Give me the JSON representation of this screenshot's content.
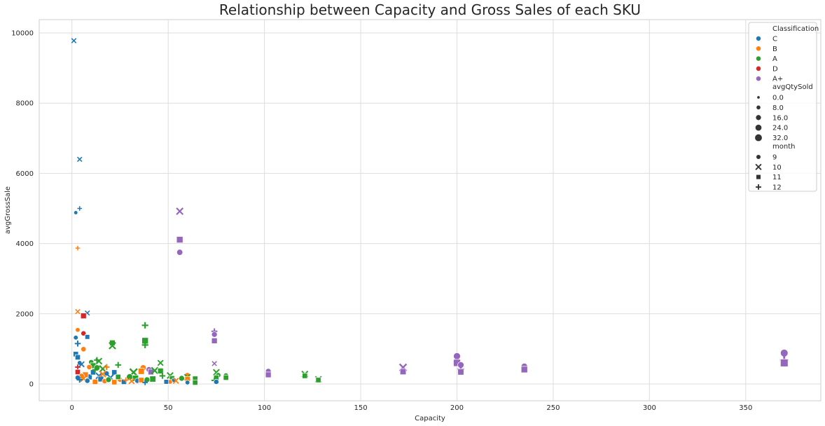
{
  "chart_data": {
    "type": "scatter",
    "title": "Relationship between Capacity and Gross Sales of each SKU",
    "xlabel": "Capacity",
    "ylabel": "avgGrossSale",
    "xlim": [
      -17,
      389
    ],
    "ylim": [
      -480,
      10380
    ],
    "xticks": [
      0,
      50,
      100,
      150,
      200,
      250,
      300,
      350
    ],
    "yticks": [
      0,
      2000,
      4000,
      6000,
      8000,
      10000
    ],
    "grid": true,
    "legend_position": "top-right",
    "legend": {
      "hue_title": "Classification",
      "hue": [
        {
          "label": "C",
          "color": "#1f77b4"
        },
        {
          "label": "B",
          "color": "#ff7f0e"
        },
        {
          "label": "A",
          "color": "#2ca02c"
        },
        {
          "label": "D",
          "color": "#d62728"
        },
        {
          "label": "A+",
          "color": "#9467bd"
        }
      ],
      "size_title": "avgQtySold",
      "sizes": [
        "0.0",
        "8.0",
        "16.0",
        "24.0",
        "32.0"
      ],
      "style_title": "month",
      "styles": [
        {
          "label": "9",
          "marker": "circle"
        },
        {
          "label": "10",
          "marker": "x"
        },
        {
          "label": "11",
          "marker": "square"
        },
        {
          "label": "12",
          "marker": "plus"
        }
      ]
    },
    "points": [
      {
        "x": 1,
        "y": 9780,
        "cls": "C",
        "month": 10,
        "qty": 1
      },
      {
        "x": 4,
        "y": 6400,
        "cls": "C",
        "month": 10,
        "qty": 1
      },
      {
        "x": 2,
        "y": 4880,
        "cls": "C",
        "month": 9,
        "qty": 1
      },
      {
        "x": 4,
        "y": 5000,
        "cls": "C",
        "month": 12,
        "qty": 1
      },
      {
        "x": 3,
        "y": 3870,
        "cls": "B",
        "month": 12,
        "qty": 1
      },
      {
        "x": 56,
        "y": 4920,
        "cls": "A+",
        "month": 10,
        "qty": 4
      },
      {
        "x": 56,
        "y": 4110,
        "cls": "A+",
        "month": 11,
        "qty": 6
      },
      {
        "x": 56,
        "y": 3750,
        "cls": "A+",
        "month": 9,
        "qty": 5
      },
      {
        "x": 3,
        "y": 2060,
        "cls": "B",
        "month": 10,
        "qty": 1
      },
      {
        "x": 8,
        "y": 2020,
        "cls": "C",
        "month": 10,
        "qty": 1
      },
      {
        "x": 6,
        "y": 1940,
        "cls": "D",
        "month": 11,
        "qty": 4
      },
      {
        "x": 6,
        "y": 1440,
        "cls": "D",
        "month": 9,
        "qty": 3
      },
      {
        "x": 3,
        "y": 1540,
        "cls": "B",
        "month": 9,
        "qty": 2
      },
      {
        "x": 8,
        "y": 1340,
        "cls": "C",
        "month": 11,
        "qty": 2
      },
      {
        "x": 2,
        "y": 1320,
        "cls": "C",
        "month": 9,
        "qty": 2
      },
      {
        "x": 3,
        "y": 1150,
        "cls": "C",
        "month": 12,
        "qty": 3
      },
      {
        "x": 6,
        "y": 990,
        "cls": "B",
        "month": 9,
        "qty": 3
      },
      {
        "x": 2,
        "y": 850,
        "cls": "C",
        "month": 11,
        "qty": 3
      },
      {
        "x": 3,
        "y": 760,
        "cls": "C",
        "month": 11,
        "qty": 3
      },
      {
        "x": 4,
        "y": 600,
        "cls": "C",
        "month": 9,
        "qty": 2
      },
      {
        "x": 5,
        "y": 560,
        "cls": "C",
        "month": 10,
        "qty": 2
      },
      {
        "x": 3,
        "y": 480,
        "cls": "D",
        "month": 12,
        "qty": 2
      },
      {
        "x": 3,
        "y": 340,
        "cls": "D",
        "month": 11,
        "qty": 3
      },
      {
        "x": 38,
        "y": 1670,
        "cls": "A",
        "month": 12,
        "qty": 4
      },
      {
        "x": 38,
        "y": 1230,
        "cls": "A",
        "month": 11,
        "qty": 6
      },
      {
        "x": 38,
        "y": 1110,
        "cls": "A",
        "month": 12,
        "qty": 4
      },
      {
        "x": 21,
        "y": 1170,
        "cls": "A",
        "month": 11,
        "qty": 4
      },
      {
        "x": 21,
        "y": 1090,
        "cls": "A",
        "month": 10,
        "qty": 4
      },
      {
        "x": 74,
        "y": 1500,
        "cls": "A+",
        "month": 12,
        "qty": 3
      },
      {
        "x": 74,
        "y": 1410,
        "cls": "A+",
        "month": 9,
        "qty": 4
      },
      {
        "x": 74,
        "y": 1230,
        "cls": "A+",
        "month": 11,
        "qty": 4
      },
      {
        "x": 74,
        "y": 580,
        "cls": "A+",
        "month": 10,
        "qty": 1
      },
      {
        "x": 10,
        "y": 620,
        "cls": "A",
        "month": 9,
        "qty": 3
      },
      {
        "x": 13,
        "y": 680,
        "cls": "A",
        "month": 12,
        "qty": 3
      },
      {
        "x": 14,
        "y": 650,
        "cls": "A",
        "month": 10,
        "qty": 3
      },
      {
        "x": 11,
        "y": 520,
        "cls": "A",
        "month": 11,
        "qty": 4
      },
      {
        "x": 13,
        "y": 460,
        "cls": "A",
        "month": 9,
        "qty": 5
      },
      {
        "x": 16,
        "y": 430,
        "cls": "A",
        "month": 10,
        "qty": 4
      },
      {
        "x": 24,
        "y": 540,
        "cls": "A",
        "month": 12,
        "qty": 3
      },
      {
        "x": 46,
        "y": 600,
        "cls": "A",
        "month": 10,
        "qty": 2
      },
      {
        "x": 9,
        "y": 480,
        "cls": "B",
        "month": 9,
        "qty": 3
      },
      {
        "x": 18,
        "y": 480,
        "cls": "B",
        "month": 12,
        "qty": 3
      },
      {
        "x": 37,
        "y": 460,
        "cls": "B",
        "month": 9,
        "qty": 5
      },
      {
        "x": 36,
        "y": 360,
        "cls": "B",
        "month": 11,
        "qty": 5
      },
      {
        "x": 40,
        "y": 410,
        "cls": "A+",
        "month": 9,
        "qty": 4
      },
      {
        "x": 41,
        "y": 340,
        "cls": "A+",
        "month": 11,
        "qty": 4
      },
      {
        "x": 43,
        "y": 380,
        "cls": "A",
        "month": 10,
        "qty": 4
      },
      {
        "x": 46,
        "y": 370,
        "cls": "A",
        "month": 11,
        "qty": 4
      },
      {
        "x": 32,
        "y": 330,
        "cls": "A",
        "month": 10,
        "qty": 6
      },
      {
        "x": 30,
        "y": 200,
        "cls": "A",
        "month": 9,
        "qty": 6
      },
      {
        "x": 33,
        "y": 160,
        "cls": "A",
        "month": 11,
        "qty": 5
      },
      {
        "x": 42,
        "y": 140,
        "cls": "A",
        "month": 11,
        "qty": 5
      },
      {
        "x": 39,
        "y": 120,
        "cls": "A",
        "month": 9,
        "qty": 4
      },
      {
        "x": 47,
        "y": 230,
        "cls": "A",
        "month": 12,
        "qty": 3
      },
      {
        "x": 22,
        "y": 330,
        "cls": "C",
        "month": 11,
        "qty": 3
      },
      {
        "x": 18,
        "y": 300,
        "cls": "C",
        "month": 9,
        "qty": 3
      },
      {
        "x": 14,
        "y": 230,
        "cls": "C",
        "month": 10,
        "qty": 3
      },
      {
        "x": 9,
        "y": 200,
        "cls": "C",
        "month": 11,
        "qty": 4
      },
      {
        "x": 7,
        "y": 260,
        "cls": "B",
        "month": 11,
        "qty": 4
      },
      {
        "x": 5,
        "y": 220,
        "cls": "B",
        "month": 9,
        "qty": 4
      },
      {
        "x": 3,
        "y": 180,
        "cls": "C",
        "month": 9,
        "qty": 3
      },
      {
        "x": 6,
        "y": 150,
        "cls": "B",
        "month": 10,
        "qty": 3
      },
      {
        "x": 4,
        "y": 120,
        "cls": "C",
        "month": 12,
        "qty": 3
      },
      {
        "x": 8,
        "y": 90,
        "cls": "C",
        "month": 9,
        "qty": 3
      },
      {
        "x": 12,
        "y": 60,
        "cls": "B",
        "month": 11,
        "qty": 3
      },
      {
        "x": 15,
        "y": 140,
        "cls": "C",
        "month": 11,
        "qty": 4
      },
      {
        "x": 17,
        "y": 80,
        "cls": "B",
        "month": 9,
        "qty": 3
      },
      {
        "x": 20,
        "y": 180,
        "cls": "C",
        "month": 10,
        "qty": 3
      },
      {
        "x": 22,
        "y": 50,
        "cls": "B",
        "month": 11,
        "qty": 3
      },
      {
        "x": 25,
        "y": 120,
        "cls": "B",
        "month": 9,
        "qty": 3
      },
      {
        "x": 27,
        "y": 60,
        "cls": "C",
        "month": 11,
        "qty": 3
      },
      {
        "x": 28,
        "y": 110,
        "cls": "B",
        "month": 12,
        "qty": 2
      },
      {
        "x": 31,
        "y": 80,
        "cls": "B",
        "month": 10,
        "qty": 2
      },
      {
        "x": 34,
        "y": 90,
        "cls": "C",
        "month": 9,
        "qty": 3
      },
      {
        "x": 36,
        "y": 110,
        "cls": "B",
        "month": 11,
        "qty": 3
      },
      {
        "x": 38,
        "y": 40,
        "cls": "C",
        "month": 12,
        "qty": 2
      },
      {
        "x": 24,
        "y": 200,
        "cls": "A",
        "month": 11,
        "qty": 3
      },
      {
        "x": 19,
        "y": 120,
        "cls": "A",
        "month": 9,
        "qty": 4
      },
      {
        "x": 16,
        "y": 280,
        "cls": "B",
        "month": 10,
        "qty": 3
      },
      {
        "x": 11,
        "y": 330,
        "cls": "C",
        "month": 11,
        "qty": 3
      },
      {
        "x": 12,
        "y": 400,
        "cls": "A",
        "month": 12,
        "qty": 3
      },
      {
        "x": 51,
        "y": 240,
        "cls": "A",
        "month": 10,
        "qty": 3
      },
      {
        "x": 52,
        "y": 160,
        "cls": "A",
        "month": 11,
        "qty": 3
      },
      {
        "x": 51,
        "y": 60,
        "cls": "B",
        "month": 9,
        "qty": 2
      },
      {
        "x": 53,
        "y": 110,
        "cls": "C",
        "month": 9,
        "qty": 2
      },
      {
        "x": 54,
        "y": 90,
        "cls": "B",
        "month": 10,
        "qty": 2
      },
      {
        "x": 49,
        "y": 60,
        "cls": "C",
        "month": 11,
        "qty": 2
      },
      {
        "x": 57,
        "y": 160,
        "cls": "A",
        "month": 9,
        "qty": 4
      },
      {
        "x": 60,
        "y": 250,
        "cls": "B",
        "month": 9,
        "qty": 3
      },
      {
        "x": 60,
        "y": 190,
        "cls": "A",
        "month": 10,
        "qty": 3
      },
      {
        "x": 60,
        "y": 140,
        "cls": "B",
        "month": 11,
        "qty": 3
      },
      {
        "x": 60,
        "y": 40,
        "cls": "C",
        "month": 9,
        "qty": 2
      },
      {
        "x": 64,
        "y": 150,
        "cls": "A",
        "month": 11,
        "qty": 3
      },
      {
        "x": 64,
        "y": 40,
        "cls": "A",
        "month": 11,
        "qty": 3
      },
      {
        "x": 75,
        "y": 330,
        "cls": "A",
        "month": 10,
        "qty": 3
      },
      {
        "x": 76,
        "y": 250,
        "cls": "A",
        "month": 9,
        "qty": 3
      },
      {
        "x": 75,
        "y": 180,
        "cls": "A",
        "month": 11,
        "qty": 3
      },
      {
        "x": 74,
        "y": 100,
        "cls": "A",
        "month": 12,
        "qty": 3
      },
      {
        "x": 75,
        "y": 60,
        "cls": "C",
        "month": 9,
        "qty": 3
      },
      {
        "x": 80,
        "y": 240,
        "cls": "A",
        "month": 9,
        "qty": 3
      },
      {
        "x": 80,
        "y": 180,
        "cls": "A",
        "month": 11,
        "qty": 3
      },
      {
        "x": 102,
        "y": 360,
        "cls": "A+",
        "month": 9,
        "qty": 4
      },
      {
        "x": 102,
        "y": 260,
        "cls": "A+",
        "month": 11,
        "qty": 4
      },
      {
        "x": 121,
        "y": 280,
        "cls": "A",
        "month": 10,
        "qty": 3
      },
      {
        "x": 121,
        "y": 230,
        "cls": "A",
        "month": 11,
        "qty": 3
      },
      {
        "x": 128,
        "y": 130,
        "cls": "A",
        "month": 10,
        "qty": 3
      },
      {
        "x": 128,
        "y": 110,
        "cls": "A",
        "month": 11,
        "qty": 3
      },
      {
        "x": 172,
        "y": 470,
        "cls": "A+",
        "month": 10,
        "qty": 5
      },
      {
        "x": 172,
        "y": 350,
        "cls": "A+",
        "month": 11,
        "qty": 5
      },
      {
        "x": 200,
        "y": 790,
        "cls": "A+",
        "month": 9,
        "qty": 8
      },
      {
        "x": 200,
        "y": 600,
        "cls": "A+",
        "month": 11,
        "qty": 8
      },
      {
        "x": 202,
        "y": 540,
        "cls": "A+",
        "month": 9,
        "qty": 6
      },
      {
        "x": 202,
        "y": 420,
        "cls": "A+",
        "month": 12,
        "qty": 5
      },
      {
        "x": 202,
        "y": 340,
        "cls": "A+",
        "month": 11,
        "qty": 5
      },
      {
        "x": 235,
        "y": 500,
        "cls": "A+",
        "month": 9,
        "qty": 6
      },
      {
        "x": 235,
        "y": 410,
        "cls": "A+",
        "month": 11,
        "qty": 6
      },
      {
        "x": 370,
        "y": 880,
        "cls": "A+",
        "month": 9,
        "qty": 10
      },
      {
        "x": 370,
        "y": 680,
        "cls": "A+",
        "month": 12,
        "qty": 9
      },
      {
        "x": 370,
        "y": 600,
        "cls": "A+",
        "month": 11,
        "qty": 10
      }
    ]
  }
}
